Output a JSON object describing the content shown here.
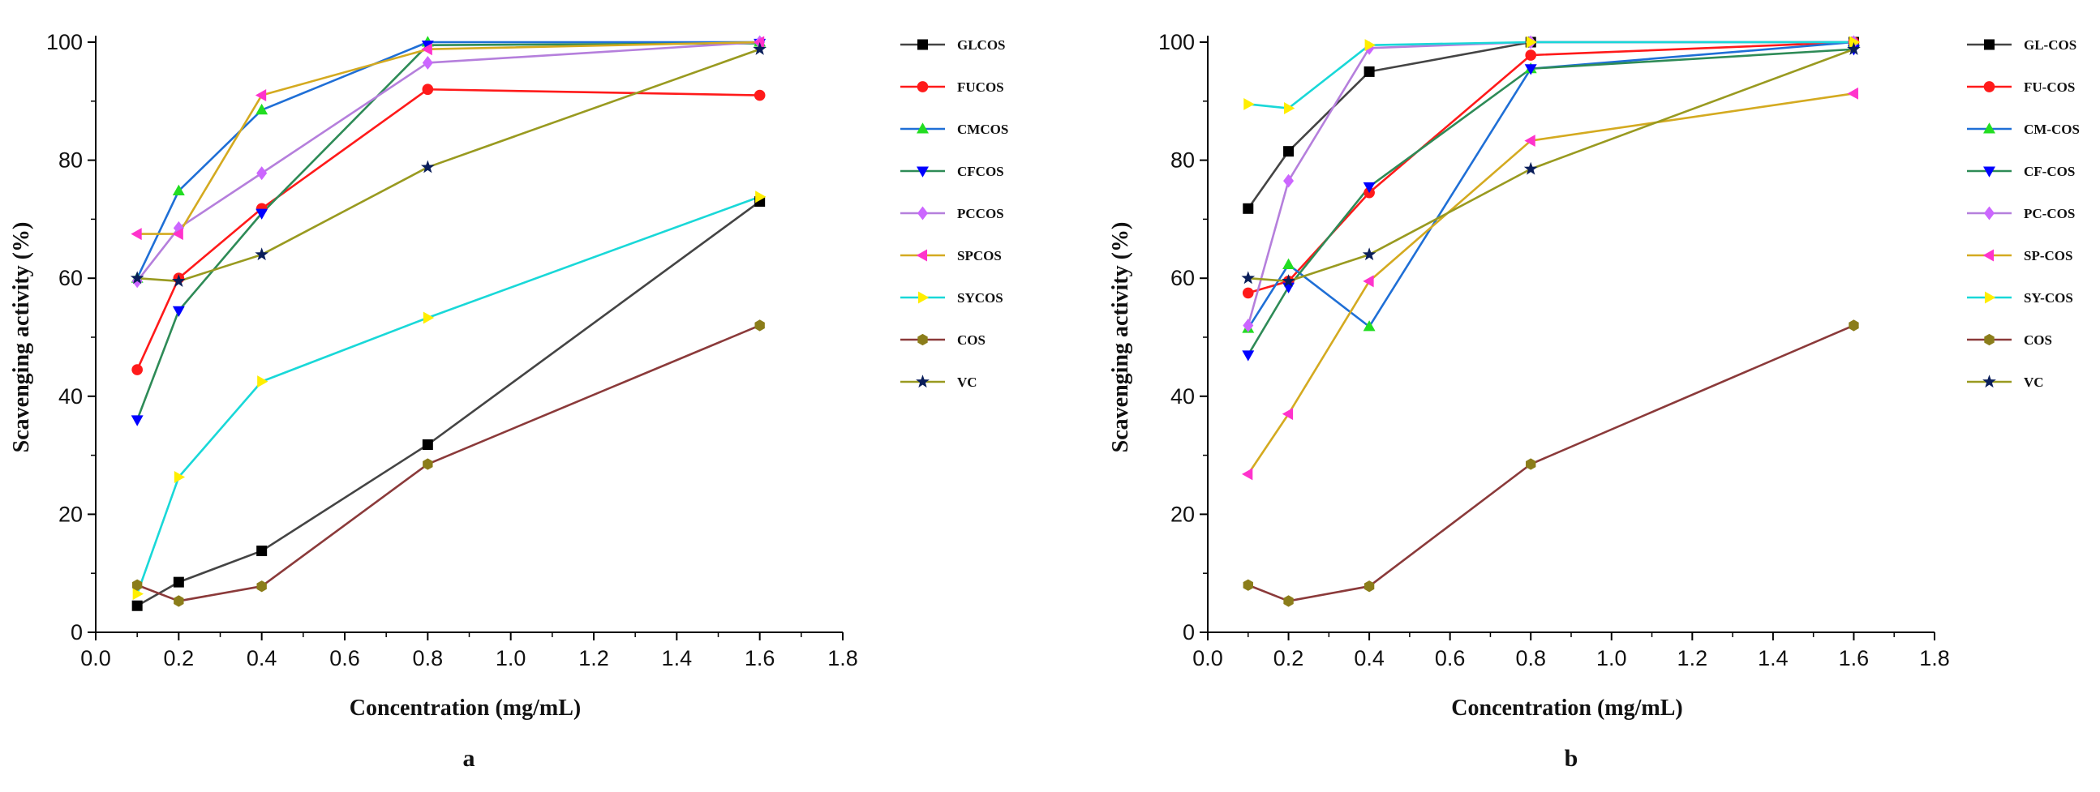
{
  "chart_data": [
    {
      "type": "line",
      "panel_label": "a",
      "xlabel": "Concentration (mg/mL)",
      "ylabel": "Scavenging activity (%)",
      "xlim": [
        0.0,
        1.8
      ],
      "ylim": [
        0,
        100
      ],
      "xticks": [
        "0.0",
        "0.2",
        "0.4",
        "0.6",
        "0.8",
        "1.0",
        "1.2",
        "1.4",
        "1.6",
        "1.8"
      ],
      "yticks": [
        "0",
        "20",
        "40",
        "60",
        "80",
        "100"
      ],
      "x": [
        0.1,
        0.2,
        0.4,
        0.8,
        1.6
      ],
      "legend_position": "right",
      "series": [
        {
          "name": "GLCOS",
          "color": "#000000",
          "line_color": "#444444",
          "marker": "square",
          "values": [
            4.5,
            8.5,
            13.8,
            31.8,
            73.0
          ]
        },
        {
          "name": "FUCOS",
          "color": "#ff1a1a",
          "line_color": "#ff1a1a",
          "marker": "circle",
          "values": [
            44.5,
            60.0,
            71.8,
            92.0,
            91.0
          ]
        },
        {
          "name": "CMCOS",
          "color": "#22dd22",
          "line_color": "#1f6fd6",
          "marker": "triangle-up",
          "values": [
            60.0,
            74.8,
            88.5,
            100.0,
            100.0
          ]
        },
        {
          "name": "CFCOS",
          "color": "#0000ff",
          "line_color": "#2e8b57",
          "marker": "triangle-down",
          "values": [
            36.0,
            54.5,
            71.0,
            99.5,
            99.8
          ]
        },
        {
          "name": "PCCOS",
          "color": "#cc66ff",
          "line_color": "#b57fdc",
          "marker": "diamond",
          "values": [
            59.5,
            68.5,
            77.8,
            96.5,
            100.0
          ]
        },
        {
          "name": "SPCOS",
          "color": "#ff33cc",
          "line_color": "#d4aa20",
          "marker": "triangle-left",
          "values": [
            67.5,
            67.5,
            91.0,
            98.8,
            100.0
          ]
        },
        {
          "name": "SYCOS",
          "color": "#ffee00",
          "line_color": "#19d8d8",
          "marker": "triangle-right",
          "values": [
            6.5,
            26.3,
            42.5,
            53.3,
            73.8
          ]
        },
        {
          "name": "COS",
          "color": "#8b7d1a",
          "line_color": "#8b3a3a",
          "marker": "hexagon",
          "values": [
            8.0,
            5.3,
            7.8,
            28.5,
            52.0
          ]
        },
        {
          "name": "VC",
          "color": "#0a1e5a",
          "line_color": "#999a20",
          "marker": "star",
          "values": [
            60.0,
            59.5,
            64.0,
            78.8,
            98.8
          ]
        }
      ]
    },
    {
      "type": "line",
      "panel_label": "b",
      "xlabel": "Concentration (mg/mL)",
      "ylabel": "Scavenging activity (%)",
      "xlim": [
        0.0,
        1.8
      ],
      "ylim": [
        0,
        100
      ],
      "xticks": [
        "0.0",
        "0.2",
        "0.4",
        "0.6",
        "0.8",
        "1.0",
        "1.2",
        "1.4",
        "1.6",
        "1.8"
      ],
      "yticks": [
        "0",
        "20",
        "40",
        "60",
        "80",
        "100"
      ],
      "x": [
        0.1,
        0.2,
        0.4,
        0.8,
        1.6
      ],
      "legend_position": "right",
      "series": [
        {
          "name": "GL-COS",
          "color": "#000000",
          "line_color": "#444444",
          "marker": "square",
          "values": [
            71.8,
            81.5,
            95.0,
            100.0,
            100.0
          ]
        },
        {
          "name": "FU-COS",
          "color": "#ff1a1a",
          "line_color": "#ff1a1a",
          "marker": "circle",
          "values": [
            57.5,
            59.5,
            74.5,
            97.8,
            100.0
          ]
        },
        {
          "name": "CM-COS",
          "color": "#22dd22",
          "line_color": "#1f6fd6",
          "marker": "triangle-up",
          "values": [
            51.5,
            62.3,
            51.8,
            95.5,
            100.0
          ]
        },
        {
          "name": "CF-COS",
          "color": "#0000ff",
          "line_color": "#2e8b57",
          "marker": "triangle-down",
          "values": [
            47.0,
            58.5,
            75.5,
            95.5,
            98.8
          ]
        },
        {
          "name": "PC-COS",
          "color": "#cc66ff",
          "line_color": "#b57fdc",
          "marker": "diamond",
          "values": [
            52.0,
            76.5,
            99.0,
            100.0,
            100.0
          ]
        },
        {
          "name": "SP-COS",
          "color": "#ff33cc",
          "line_color": "#d4aa20",
          "marker": "triangle-left",
          "values": [
            26.8,
            37.0,
            59.5,
            83.3,
            91.3
          ]
        },
        {
          "name": "SY-COS",
          "color": "#ffee00",
          "line_color": "#19d8d8",
          "marker": "triangle-right",
          "values": [
            89.5,
            88.8,
            99.5,
            100.0,
            100.0
          ]
        },
        {
          "name": "COS",
          "color": "#8b7d1a",
          "line_color": "#8b3a3a",
          "marker": "hexagon",
          "values": [
            8.0,
            5.3,
            7.8,
            28.5,
            52.0
          ]
        },
        {
          "name": "VC",
          "color": "#0a1e5a",
          "line_color": "#999a20",
          "marker": "star",
          "values": [
            60.0,
            59.5,
            64.0,
            78.5,
            98.8
          ]
        }
      ]
    }
  ]
}
